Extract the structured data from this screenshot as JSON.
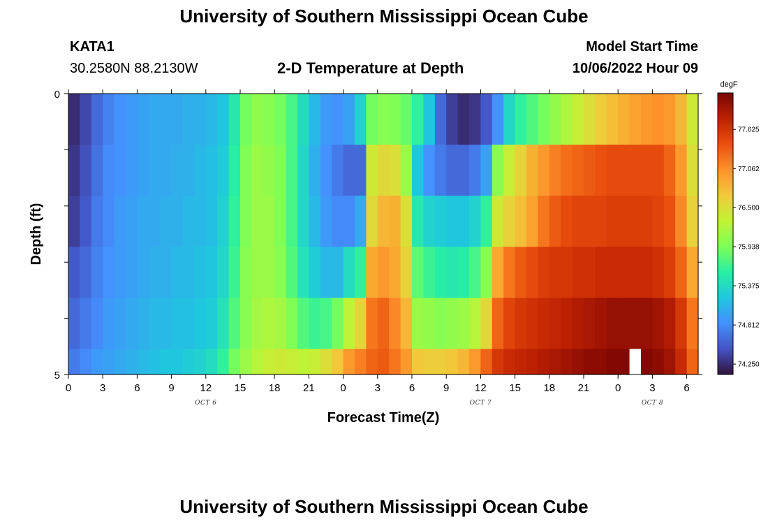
{
  "header": {
    "title": "University of Southern Mississippi Ocean Cube",
    "station": "KATA1",
    "coords": "30.2580N  88.2130W",
    "subtitle": "2-D Temperature at Depth",
    "model_start_label": "Model Start Time",
    "model_start_value": "10/06/2022 Hour 09"
  },
  "footer": {
    "title": "University of Southern Mississippi Ocean Cube"
  },
  "colors": {
    "palette": [
      "#30123b",
      "#4454c4",
      "#4490fe",
      "#1fc8de",
      "#29efa2",
      "#7dff56",
      "#c1f334",
      "#f1ca3a",
      "#fe922a",
      "#ea4f0d",
      "#be2102",
      "#7a0403"
    ]
  },
  "chart_data": {
    "type": "heatmap",
    "title": "2-D Temperature at Depth",
    "xlabel": "Forecast Time(Z)",
    "ylabel": "Depth (ft)",
    "x_hours": [
      0,
      1,
      2,
      3,
      4,
      5,
      6,
      7,
      8,
      9,
      10,
      11,
      12,
      13,
      14,
      15,
      16,
      17,
      18,
      19,
      20,
      21,
      22,
      23,
      24,
      25,
      26,
      27,
      28,
      29,
      30,
      31,
      32,
      33,
      34,
      35,
      36,
      37,
      38,
      39,
      40,
      41,
      42,
      43,
      44,
      45,
      46,
      47,
      48,
      49,
      50,
      51,
      52,
      53,
      54
    ],
    "x_tick_labels": [
      "0",
      "3",
      "6",
      "9",
      "12",
      "15",
      "18",
      "21",
      "0",
      "3",
      "6",
      "9",
      "12",
      "15",
      "18",
      "21",
      "0",
      "3",
      "6"
    ],
    "date_labels": [
      {
        "text": "OCT 6",
        "at_hour": 12
      },
      {
        "text": "OCT 7",
        "at_hour": 36
      },
      {
        "text": "OCT 8",
        "at_hour": 51
      }
    ],
    "y_tick_labels": [
      "0",
      "5"
    ],
    "depth_rows": [
      0,
      1,
      2,
      3,
      4,
      5
    ],
    "colorbar": {
      "unit": "degF",
      "min": 74.1,
      "max": 78.15,
      "tick_values": [
        "77.625",
        "77.062",
        "76.500",
        "75.938",
        "75.375",
        "74.812",
        "74.250"
      ]
    },
    "series": [
      {
        "depth_row": 0,
        "values": [
          74.25,
          74.4,
          74.6,
          74.75,
          74.85,
          74.9,
          74.95,
          75.0,
          75.0,
          75.0,
          75.05,
          75.05,
          75.1,
          75.2,
          75.5,
          75.9,
          76.05,
          76.0,
          75.9,
          75.7,
          75.4,
          75.1,
          74.9,
          74.85,
          74.95,
          75.3,
          75.9,
          76.0,
          75.95,
          75.85,
          75.6,
          75.2,
          74.6,
          74.35,
          74.25,
          74.3,
          74.5,
          74.85,
          75.35,
          75.6,
          75.75,
          75.9,
          76.05,
          76.2,
          76.35,
          76.5,
          76.65,
          76.75,
          76.85,
          76.95,
          77.0,
          77.05,
          77.0,
          76.8,
          76.4
        ]
      },
      {
        "depth_row": 1,
        "values": [
          74.3,
          74.45,
          74.65,
          74.8,
          74.85,
          74.9,
          74.95,
          75.0,
          75.0,
          75.05,
          75.05,
          75.1,
          75.15,
          75.25,
          75.55,
          75.95,
          76.1,
          76.05,
          75.95,
          75.7,
          75.35,
          75.05,
          74.85,
          74.7,
          74.6,
          74.6,
          76.4,
          76.55,
          76.5,
          76.1,
          75.2,
          74.85,
          74.7,
          74.6,
          74.6,
          74.7,
          74.95,
          76.0,
          76.35,
          76.6,
          76.85,
          77.0,
          77.15,
          77.25,
          77.3,
          77.35,
          77.4,
          77.45,
          77.45,
          77.45,
          77.45,
          77.45,
          77.3,
          77.0,
          76.5
        ]
      },
      {
        "depth_row": 2,
        "values": [
          74.35,
          74.5,
          74.7,
          74.8,
          74.9,
          74.95,
          75.0,
          75.0,
          75.05,
          75.05,
          75.1,
          75.1,
          75.15,
          75.3,
          75.6,
          75.95,
          76.1,
          76.1,
          75.95,
          75.7,
          75.35,
          75.1,
          74.9,
          74.8,
          74.8,
          75.0,
          76.55,
          76.8,
          76.85,
          76.5,
          75.5,
          75.3,
          75.25,
          75.2,
          75.2,
          75.3,
          75.6,
          76.4,
          76.6,
          76.75,
          76.95,
          77.2,
          77.35,
          77.45,
          77.5,
          77.5,
          77.5,
          77.55,
          77.55,
          77.55,
          77.55,
          77.5,
          77.4,
          77.1,
          76.6
        ]
      },
      {
        "depth_row": 3,
        "values": [
          74.5,
          74.6,
          74.75,
          74.85,
          74.9,
          74.95,
          75.0,
          75.05,
          75.05,
          75.1,
          75.1,
          75.15,
          75.2,
          75.35,
          75.65,
          76.0,
          76.1,
          76.1,
          76.0,
          75.75,
          75.45,
          75.25,
          75.1,
          75.1,
          75.4,
          75.6,
          76.9,
          77.0,
          76.9,
          76.6,
          75.8,
          75.65,
          75.55,
          75.5,
          75.55,
          75.7,
          76.0,
          76.9,
          77.2,
          77.35,
          77.45,
          77.55,
          77.6,
          77.6,
          77.65,
          77.65,
          77.7,
          77.7,
          77.7,
          77.7,
          77.7,
          77.65,
          77.55,
          77.3,
          76.9
        ]
      },
      {
        "depth_row": 4,
        "values": [
          74.6,
          74.7,
          74.8,
          74.9,
          74.95,
          75.0,
          75.05,
          75.1,
          75.1,
          75.15,
          75.15,
          75.2,
          75.25,
          75.45,
          75.75,
          76.0,
          76.15,
          76.2,
          76.15,
          75.95,
          75.75,
          75.65,
          75.7,
          75.9,
          76.3,
          76.6,
          77.2,
          77.3,
          77.1,
          76.8,
          76.1,
          76.05,
          76.0,
          76.05,
          76.1,
          76.25,
          76.55,
          77.3,
          77.5,
          77.6,
          77.65,
          77.7,
          77.75,
          77.8,
          77.85,
          77.9,
          77.95,
          78.0,
          78.0,
          78.0,
          78.0,
          77.95,
          77.85,
          77.6,
          77.2
        ]
      },
      {
        "depth_row": 5,
        "values": [
          74.7,
          74.8,
          74.9,
          74.95,
          75.0,
          75.05,
          75.1,
          75.15,
          75.2,
          75.2,
          75.25,
          75.3,
          75.4,
          75.6,
          75.9,
          76.1,
          76.25,
          76.35,
          76.4,
          76.35,
          76.3,
          76.35,
          76.5,
          76.7,
          77.0,
          77.15,
          77.3,
          77.35,
          77.2,
          77.0,
          76.7,
          76.65,
          76.65,
          76.7,
          76.8,
          77.0,
          77.3,
          77.6,
          77.7,
          77.75,
          77.8,
          77.85,
          77.9,
          77.95,
          78.0,
          78.05,
          78.05,
          78.1,
          78.1,
          null,
          78.1,
          78.05,
          77.95,
          77.7,
          77.3
        ]
      }
    ]
  }
}
